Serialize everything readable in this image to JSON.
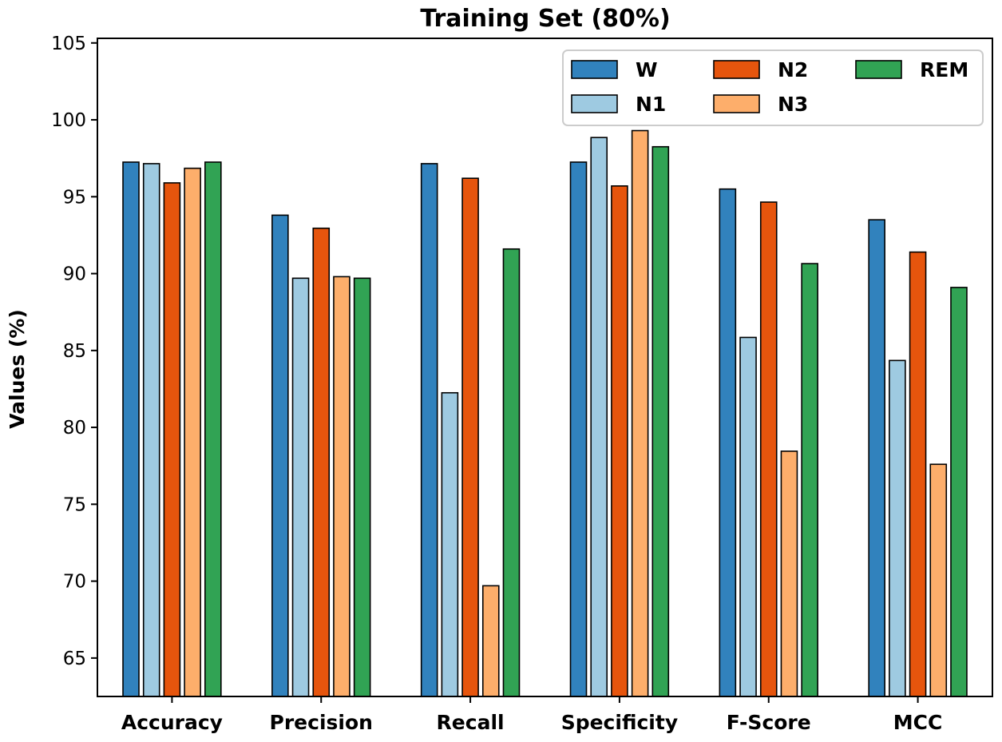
{
  "chart_data": {
    "type": "bar",
    "title": "Training Set (80%)",
    "xlabel": "",
    "ylabel": "Values (%)",
    "ylim": [
      62.5,
      105.3
    ],
    "yticks": [
      65,
      70,
      75,
      80,
      85,
      90,
      95,
      100,
      105
    ],
    "ytick_labels": [
      "65",
      "70",
      "75",
      "80",
      "85",
      "90",
      "95",
      "100",
      "105"
    ],
    "categories": [
      "Accuracy",
      "Precision",
      "Recall",
      "Specificity",
      "F-Score",
      "MCC"
    ],
    "series": [
      {
        "name": "W",
        "color": "#3182bd",
        "values": [
          97.25,
          93.8,
          97.15,
          97.25,
          95.5,
          93.5
        ]
      },
      {
        "name": "N1",
        "color": "#9ecae1",
        "values": [
          97.15,
          89.7,
          82.25,
          98.85,
          85.85,
          84.35
        ]
      },
      {
        "name": "N2",
        "color": "#e6550d",
        "values": [
          95.9,
          92.95,
          96.2,
          95.7,
          94.65,
          91.4
        ]
      },
      {
        "name": "N3",
        "color": "#fdae6b",
        "values": [
          96.85,
          89.8,
          69.7,
          99.3,
          78.45,
          77.6
        ]
      },
      {
        "name": "REM",
        "color": "#31a354",
        "values": [
          97.25,
          89.7,
          91.6,
          98.25,
          90.65,
          89.1
        ]
      }
    ],
    "legend": {
      "position": "top-right",
      "columns": 3
    },
    "grid": false
  }
}
